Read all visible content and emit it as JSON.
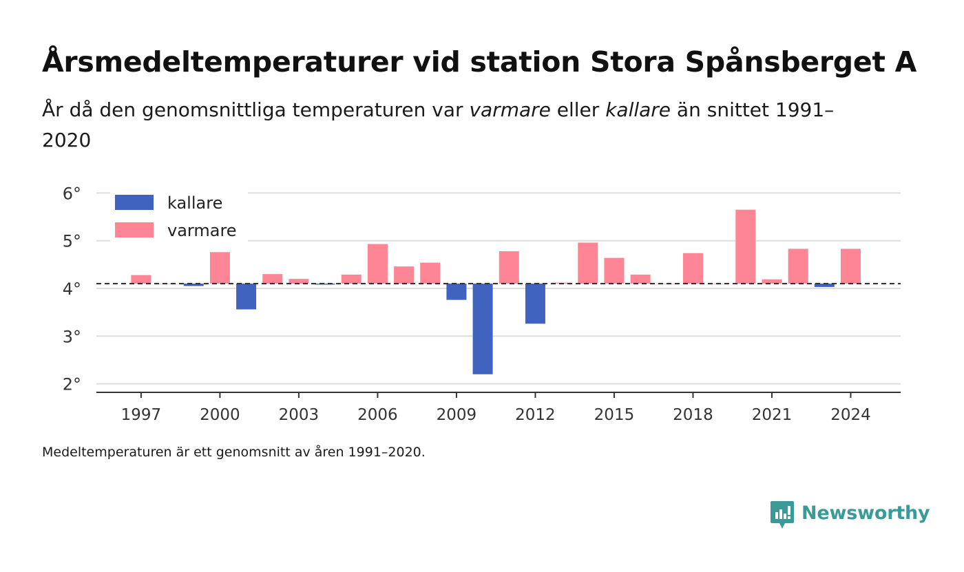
{
  "header": {
    "title": "Årsmedeltemperaturer vid station Stora Spånsberget A",
    "subtitle_before": "År då den genomsnittliga temperaturen var ",
    "subtitle_warm": "varmare",
    "subtitle_mid": " eller ",
    "subtitle_cold": "kallare",
    "subtitle_after": " än snittet 1991–2020"
  },
  "footer": {
    "note": "Medeltemperaturen är ett genomsnitt av åren 1991–2020.",
    "brand": "Newsworthy"
  },
  "colors": {
    "colder": "#4163c0",
    "warmer": "#fe8595",
    "baseline": "#333333",
    "grid": "#dddddd",
    "brand": "#3a9b96"
  },
  "chart_data": {
    "type": "bar",
    "baseline": 4.1,
    "ylim": [
      1.85,
      6.15
    ],
    "yticks": [
      2,
      3,
      4,
      5,
      6
    ],
    "ytick_labels": [
      "2°",
      "3°",
      "4°",
      "5°",
      "6°"
    ],
    "xticks": [
      1997,
      2000,
      2003,
      2006,
      2009,
      2012,
      2015,
      2018,
      2021,
      2024
    ],
    "xlim": [
      1995.3,
      2025.9
    ],
    "legend": {
      "placement": "top-left",
      "colder_label": "kallare",
      "warmer_label": "varmare"
    },
    "grid": true,
    "series": [
      {
        "x": 1997,
        "value": 4.28
      },
      {
        "x": 1998,
        "value": 4.1
      },
      {
        "x": 1999,
        "value": 4.05
      },
      {
        "x": 2000,
        "value": 4.76
      },
      {
        "x": 2001,
        "value": 3.56
      },
      {
        "x": 2002,
        "value": 4.3
      },
      {
        "x": 2003,
        "value": 4.2
      },
      {
        "x": 2004,
        "value": 4.08
      },
      {
        "x": 2005,
        "value": 4.29
      },
      {
        "x": 2006,
        "value": 4.93
      },
      {
        "x": 2007,
        "value": 4.46
      },
      {
        "x": 2008,
        "value": 4.54
      },
      {
        "x": 2009,
        "value": 3.76
      },
      {
        "x": 2010,
        "value": 2.2
      },
      {
        "x": 2011,
        "value": 4.78
      },
      {
        "x": 2012,
        "value": 3.26
      },
      {
        "x": 2013,
        "value": 4.12
      },
      {
        "x": 2014,
        "value": 4.96
      },
      {
        "x": 2015,
        "value": 4.64
      },
      {
        "x": 2016,
        "value": 4.29
      },
      {
        "x": 2017,
        "value": 4.1
      },
      {
        "x": 2018,
        "value": 4.74
      },
      {
        "x": 2019,
        "value": 4.1
      },
      {
        "x": 2020,
        "value": 5.65
      },
      {
        "x": 2021,
        "value": 4.19
      },
      {
        "x": 2022,
        "value": 4.83
      },
      {
        "x": 2023,
        "value": 4.03
      },
      {
        "x": 2024,
        "value": 4.83
      }
    ]
  }
}
